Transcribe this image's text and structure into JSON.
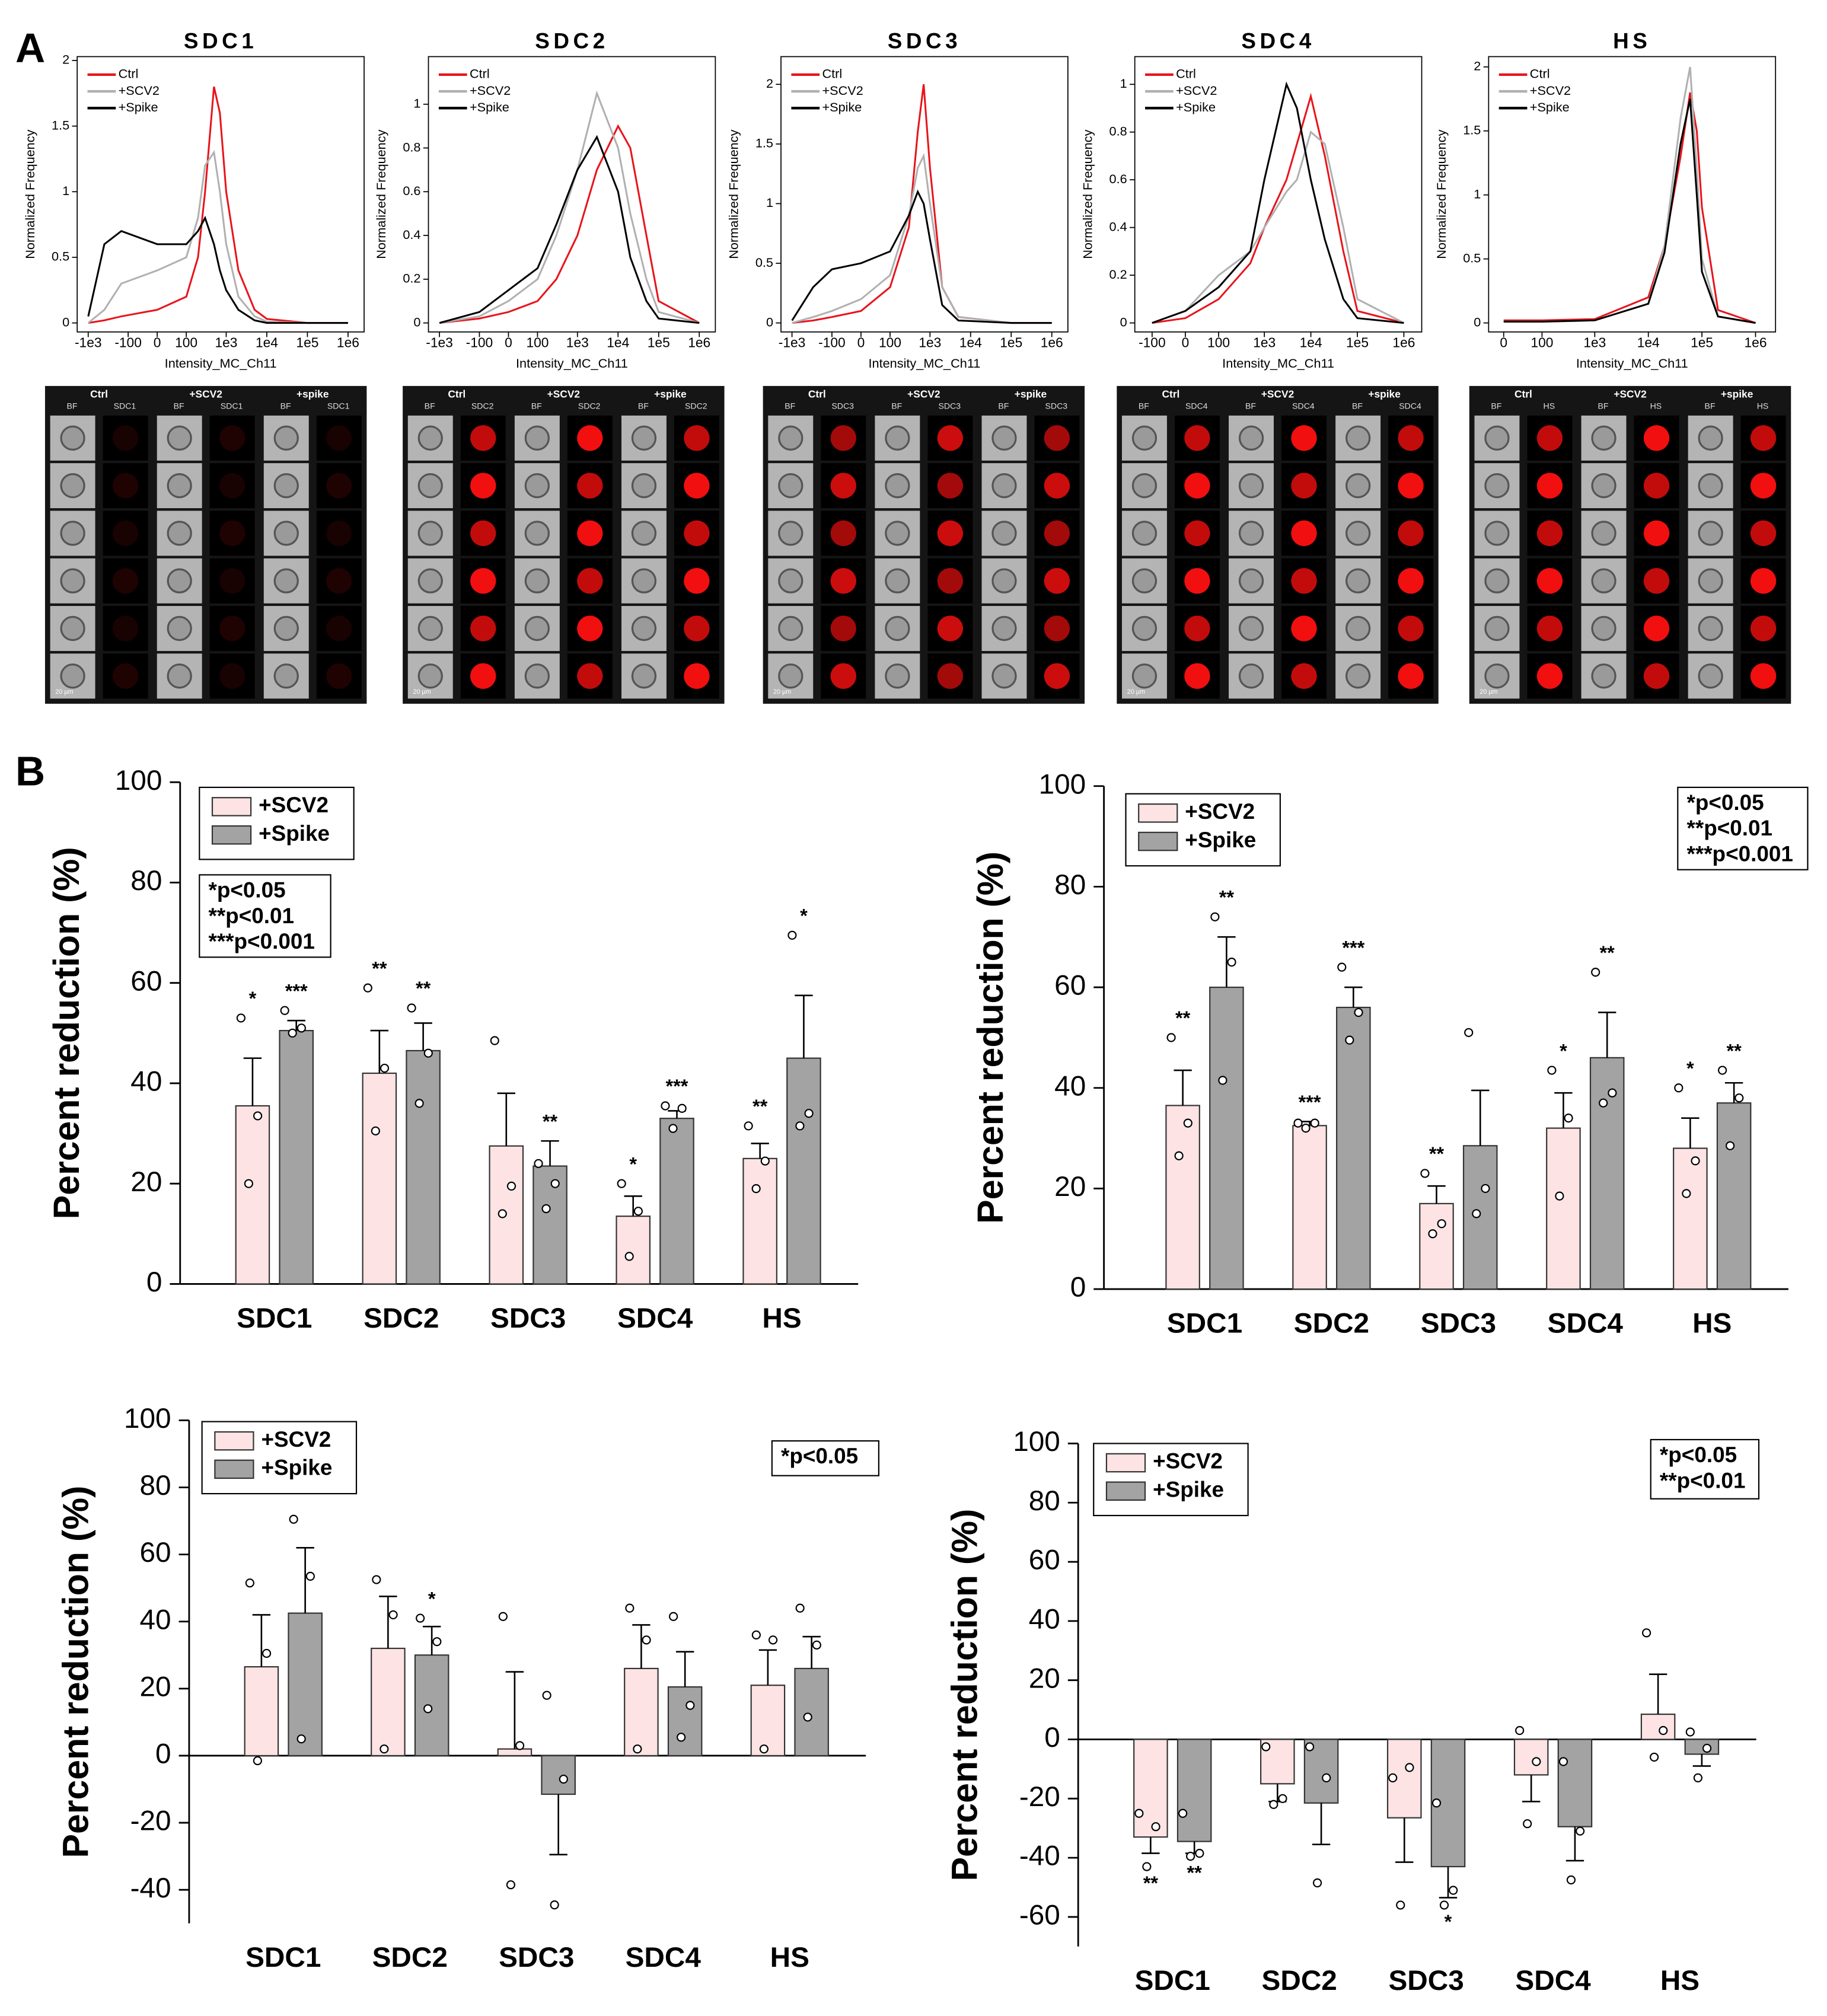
{
  "panel_labels": [
    "A",
    "B"
  ],
  "chart_data": [
    {
      "type": "line",
      "title": "SDC1",
      "xlabel": "Intensity_MC_Ch11",
      "ylabel": "Normalized Frequency",
      "xscale": "logicle",
      "xlim": [
        -1500,
        2000000
      ],
      "ylim": [
        0,
        2
      ],
      "xticks": [
        {
          "value": -1000,
          "label": "-1e3"
        },
        -100,
        0,
        100,
        {
          "value": 1000,
          "label": "1e3"
        },
        {
          "value": 10000,
          "label": "1e4"
        },
        {
          "value": 100000,
          "label": "1e5"
        },
        {
          "value": 1000000,
          "label": "1e6"
        }
      ],
      "yticks": [
        0,
        0.5,
        1,
        1.5,
        2
      ],
      "legend": "upper left",
      "x": [
        -1000,
        -400,
        -150,
        0,
        100,
        200,
        300,
        500,
        700,
        1000,
        2000,
        5000,
        10000,
        100000,
        1000000
      ],
      "series": [
        {
          "name": "Ctrl",
          "color": "#e8141b",
          "values": [
            0,
            0.02,
            0.05,
            0.1,
            0.2,
            0.5,
            1.0,
            1.8,
            1.6,
            1.0,
            0.4,
            0.1,
            0.03,
            0,
            0
          ]
        },
        {
          "name": "+SCV2",
          "color": "#b0b0b0",
          "values": [
            0,
            0.1,
            0.3,
            0.4,
            0.5,
            0.8,
            1.2,
            1.3,
            1.0,
            0.6,
            0.2,
            0.05,
            0.01,
            0,
            0
          ]
        },
        {
          "name": "+Spike",
          "color": "#000000",
          "values": [
            0.05,
            0.6,
            0.7,
            0.6,
            0.6,
            0.7,
            0.8,
            0.6,
            0.4,
            0.25,
            0.1,
            0.02,
            0,
            0,
            0
          ]
        }
      ]
    },
    {
      "type": "line",
      "title": "SDC2",
      "xlabel": "Intensity_MC_Ch11",
      "ylabel": "Normalized Frequency",
      "xscale": "logicle",
      "xlim": [
        -1500,
        2000000
      ],
      "ylim": [
        0,
        1.2
      ],
      "xticks": [
        {
          "value": -1000,
          "label": "-1e3"
        },
        -100,
        0,
        100,
        {
          "value": 1000,
          "label": "1e3"
        },
        {
          "value": 10000,
          "label": "1e4"
        },
        {
          "value": 100000,
          "label": "1e5"
        },
        {
          "value": 1000000,
          "label": "1e6"
        }
      ],
      "yticks": [
        0,
        0.2,
        0.4,
        0.6,
        0.8,
        1
      ],
      "legend": "upper left",
      "x": [
        -1000,
        -100,
        0,
        100,
        300,
        1000,
        3000,
        10000,
        20000,
        50000,
        100000,
        1000000
      ],
      "series": [
        {
          "name": "Ctrl",
          "color": "#e8141b",
          "values": [
            0,
            0.02,
            0.05,
            0.1,
            0.2,
            0.4,
            0.7,
            0.9,
            0.8,
            0.4,
            0.1,
            0
          ]
        },
        {
          "name": "+SCV2",
          "color": "#b0b0b0",
          "values": [
            0,
            0.03,
            0.1,
            0.2,
            0.4,
            0.7,
            1.05,
            0.8,
            0.5,
            0.2,
            0.05,
            0
          ]
        },
        {
          "name": "+Spike",
          "color": "#000000",
          "values": [
            0,
            0.05,
            0.15,
            0.25,
            0.45,
            0.7,
            0.85,
            0.6,
            0.3,
            0.1,
            0.02,
            0
          ]
        }
      ]
    },
    {
      "type": "line",
      "title": "SDC3",
      "xlabel": "Intensity_MC_Ch11",
      "ylabel": "Normalized Frequency",
      "xscale": "logicle",
      "xlim": [
        -1500,
        2000000
      ],
      "ylim": [
        0,
        2.2
      ],
      "xticks": [
        {
          "value": -1000,
          "label": "-1e3"
        },
        -100,
        0,
        100,
        {
          "value": 1000,
          "label": "1e3"
        },
        {
          "value": 10000,
          "label": "1e4"
        },
        {
          "value": 100000,
          "label": "1e5"
        },
        {
          "value": 1000000,
          "label": "1e6"
        }
      ],
      "yticks": [
        0,
        0.5,
        1,
        1.5,
        2
      ],
      "legend": "upper left",
      "x": [
        -1000,
        -300,
        -100,
        0,
        100,
        300,
        500,
        700,
        1000,
        2000,
        5000,
        100000,
        1000000
      ],
      "series": [
        {
          "name": "Ctrl",
          "color": "#e8141b",
          "values": [
            0,
            0.02,
            0.05,
            0.1,
            0.3,
            0.8,
            1.6,
            2.0,
            1.3,
            0.3,
            0.05,
            0,
            0
          ]
        },
        {
          "name": "+SCV2",
          "color": "#b0b0b0",
          "values": [
            0,
            0.05,
            0.1,
            0.2,
            0.4,
            0.9,
            1.3,
            1.4,
            1.0,
            0.3,
            0.05,
            0,
            0
          ]
        },
        {
          "name": "+Spike",
          "color": "#000000",
          "values": [
            0.02,
            0.3,
            0.45,
            0.5,
            0.6,
            0.9,
            1.1,
            1.0,
            0.7,
            0.15,
            0.02,
            0,
            0
          ]
        }
      ]
    },
    {
      "type": "line",
      "title": "SDC4",
      "xlabel": "Intensity_MC_Ch11",
      "ylabel": "Normalized Frequency",
      "xscale": "logicle",
      "xlim": [
        -200,
        2000000
      ],
      "ylim": [
        0,
        1.1
      ],
      "xticks": [
        -100,
        0,
        100,
        {
          "value": 1000,
          "label": "1e3"
        },
        {
          "value": 10000,
          "label": "1e4"
        },
        {
          "value": 100000,
          "label": "1e5"
        },
        {
          "value": 1000000,
          "label": "1e6"
        }
      ],
      "yticks": [
        0,
        0.2,
        0.4,
        0.6,
        0.8,
        1
      ],
      "legend": "upper left",
      "x": [
        -100,
        0,
        100,
        500,
        1000,
        3000,
        5000,
        10000,
        20000,
        50000,
        100000,
        1000000
      ],
      "series": [
        {
          "name": "Ctrl",
          "color": "#e8141b",
          "values": [
            0,
            0.02,
            0.1,
            0.25,
            0.4,
            0.6,
            0.75,
            0.95,
            0.7,
            0.3,
            0.05,
            0
          ]
        },
        {
          "name": "+SCV2",
          "color": "#b0b0b0",
          "values": [
            0,
            0.05,
            0.2,
            0.3,
            0.4,
            0.55,
            0.6,
            0.8,
            0.75,
            0.4,
            0.1,
            0
          ]
        },
        {
          "name": "+Spike",
          "color": "#000000",
          "values": [
            0,
            0.05,
            0.15,
            0.3,
            0.6,
            1.0,
            0.9,
            0.6,
            0.35,
            0.1,
            0.02,
            0
          ]
        }
      ]
    },
    {
      "type": "line",
      "title": "HS",
      "xlabel": "Intensity_MC_Ch11",
      "ylabel": "Normalized Frequency",
      "xscale": "logicle",
      "xlim": [
        -20,
        2000000
      ],
      "ylim": [
        0,
        2.05
      ],
      "xticks": [
        0,
        100,
        {
          "value": 1000,
          "label": "1e3"
        },
        {
          "value": 10000,
          "label": "1e4"
        },
        {
          "value": 100000,
          "label": "1e5"
        },
        {
          "value": 1000000,
          "label": "1e6"
        }
      ],
      "yticks": [
        0,
        0.5,
        1,
        1.5,
        2
      ],
      "legend": "upper left",
      "x": [
        0,
        100,
        1000,
        10000,
        20000,
        40000,
        60000,
        80000,
        100000,
        200000,
        1000000
      ],
      "series": [
        {
          "name": "Ctrl",
          "color": "#e8141b",
          "values": [
            0.02,
            0.02,
            0.03,
            0.2,
            0.6,
            1.3,
            1.8,
            1.5,
            0.9,
            0.1,
            0
          ]
        },
        {
          "name": "+SCV2",
          "color": "#b0b0b0",
          "values": [
            0.01,
            0.01,
            0.02,
            0.15,
            0.6,
            1.6,
            2.0,
            1.2,
            0.5,
            0.05,
            0
          ]
        },
        {
          "name": "+Spike",
          "color": "#000000",
          "values": [
            0.01,
            0.01,
            0.02,
            0.15,
            0.55,
            1.4,
            1.75,
            1.0,
            0.4,
            0.05,
            0
          ]
        }
      ]
    },
    {
      "type": "bar",
      "ylabel": "Percent reduction (%)",
      "categories": [
        "SDC1",
        "SDC2",
        "SDC3",
        "SDC4",
        "HS"
      ],
      "ylim": [
        0,
        100
      ],
      "yticks": [
        0,
        20,
        40,
        60,
        80,
        100
      ],
      "legend": "upper left",
      "annotation": [
        "*p<0.05",
        "**p<0.01",
        "***p<0.001"
      ],
      "series": [
        {
          "name": "+SCV2",
          "color": "#fde3e3",
          "values": [
            35.5,
            42,
            27.5,
            13.5,
            25
          ],
          "errors": [
            9.5,
            8.5,
            10.5,
            4,
            3
          ],
          "points": [
            [
              53,
              33.5,
              20
            ],
            [
              59,
              43,
              30.5
            ],
            [
              48.5,
              19.5,
              14
            ],
            [
              20,
              14.5,
              5.5
            ],
            [
              31.5,
              24.5,
              19
            ]
          ],
          "stars": [
            "*",
            "**",
            null,
            "*",
            "**"
          ]
        },
        {
          "name": "+Spike",
          "color": "#a3a3a3",
          "values": [
            50.5,
            46.5,
            23.5,
            33,
            45
          ],
          "errors": [
            2,
            5.5,
            5,
            1.5,
            12.5
          ],
          "points": [
            [
              54.5,
              51,
              50
            ],
            [
              55,
              46,
              36
            ],
            [
              24,
              20,
              15
            ],
            [
              35.5,
              35,
              31
            ],
            [
              69.5,
              34,
              31.5
            ]
          ],
          "stars": [
            "***",
            "**",
            "**",
            "***",
            "*"
          ]
        }
      ]
    },
    {
      "type": "bar",
      "ylabel": "Percent reduction (%)",
      "categories": [
        "SDC1",
        "SDC2",
        "SDC3",
        "SDC4",
        "HS"
      ],
      "ylim": [
        0,
        100
      ],
      "yticks": [
        0,
        20,
        40,
        60,
        80,
        100
      ],
      "legend": "upper left",
      "annotation": [
        "*p<0.05",
        "**p<0.01",
        "***p<0.001"
      ],
      "series": [
        {
          "name": "+SCV2",
          "color": "#fde3e3",
          "values": [
            36.5,
            32.5,
            17,
            32,
            28
          ],
          "errors": [
            7,
            0.8,
            3.5,
            7,
            6
          ],
          "points": [
            [
              50,
              33,
              26.5
            ],
            [
              33,
              33,
              32
            ],
            [
              23,
              13,
              11
            ],
            [
              43.5,
              34,
              18.5
            ],
            [
              40,
              25.5,
              19
            ]
          ],
          "stars": [
            "**",
            "***",
            "**",
            "*",
            "*"
          ]
        },
        {
          "name": "+Spike",
          "color": "#a3a3a3",
          "values": [
            60,
            56,
            28.5,
            46,
            37
          ],
          "errors": [
            10,
            4,
            11,
            9,
            4
          ],
          "points": [
            [
              74,
              65,
              41.5
            ],
            [
              64,
              55,
              49.5
            ],
            [
              51,
              20,
              15
            ],
            [
              63,
              39,
              37
            ],
            [
              43.5,
              38,
              28.5
            ]
          ],
          "stars": [
            "**",
            "***",
            null,
            "**",
            "**"
          ]
        }
      ]
    },
    {
      "type": "bar",
      "ylabel": "Percent reduction (%)",
      "categories": [
        "SDC1",
        "SDC2",
        "SDC3",
        "SDC4",
        "HS"
      ],
      "ylim": [
        -50,
        100
      ],
      "yticks": [
        -40,
        -20,
        0,
        20,
        40,
        60,
        80,
        100
      ],
      "legend": "upper left",
      "annotation": [
        "*p<0.05"
      ],
      "series": [
        {
          "name": "+SCV2",
          "color": "#fde3e3",
          "values": [
            26.5,
            32,
            2,
            26,
            21
          ],
          "errors": [
            15.5,
            15.5,
            23,
            13,
            10.5
          ],
          "points": [
            [
              51.5,
              30.5,
              -1.5
            ],
            [
              52.5,
              42,
              2
            ],
            [
              41.5,
              3,
              -38.5
            ],
            [
              44,
              34.5,
              2
            ],
            [
              36,
              34.5,
              2
            ]
          ],
          "stars": [
            null,
            null,
            null,
            null,
            null
          ]
        },
        {
          "name": "+Spike",
          "color": "#a3a3a3",
          "values": [
            42.5,
            30,
            -11.5,
            20.5,
            26
          ],
          "errors": [
            19.5,
            8.5,
            18,
            10.5,
            9.5
          ],
          "points": [
            [
              70.5,
              53.5,
              5
            ],
            [
              41,
              34,
              14
            ],
            [
              18,
              -7,
              -44.5
            ],
            [
              41.5,
              15,
              5.5
            ],
            [
              44,
              33,
              11.5
            ]
          ],
          "stars": [
            null,
            "*",
            null,
            null,
            null
          ]
        }
      ]
    },
    {
      "type": "bar",
      "ylabel": "Percent reduction (%)",
      "categories": [
        "SDC1",
        "SDC2",
        "SDC3",
        "SDC4",
        "HS"
      ],
      "ylim": [
        -70,
        100
      ],
      "yticks": [
        -60,
        -40,
        -20,
        0,
        20,
        40,
        60,
        80,
        100
      ],
      "legend": "upper left",
      "annotation": [
        "*p<0.05",
        "**p<0.01"
      ],
      "series": [
        {
          "name": "+SCV2",
          "color": "#fde3e3",
          "values": [
            -33,
            -15,
            -26.5,
            -12,
            8.5
          ],
          "errors": [
            5.5,
            6,
            15,
            9,
            13.5
          ],
          "points": [
            [
              -25,
              -29.5,
              -43
            ],
            [
              -2.5,
              -20,
              -22
            ],
            [
              -13,
              -9.5,
              -56
            ],
            [
              3,
              -7.5,
              -28.5
            ],
            [
              36,
              3,
              -6
            ]
          ],
          "stars": [
            "**",
            null,
            null,
            null,
            null
          ]
        },
        {
          "name": "+Spike",
          "color": "#a3a3a3",
          "values": [
            -34.5,
            -21.5,
            -43,
            -29.5,
            -5
          ],
          "errors": [
            4,
            14,
            10.5,
            11.5,
            4
          ],
          "points": [
            [
              -25,
              -38.5,
              -39.5
            ],
            [
              -2.5,
              -13,
              -48.5
            ],
            [
              -21.5,
              -51,
              -56
            ],
            [
              -7.5,
              -31,
              -47.5
            ],
            [
              2.5,
              -3,
              -13
            ]
          ],
          "stars": [
            "**",
            null,
            "*",
            null,
            null
          ]
        }
      ]
    }
  ],
  "image_panels": [
    {
      "groups": [
        "Ctrl",
        "+SCV2",
        "+spike"
      ],
      "channels": [
        "BF",
        "SDC1"
      ],
      "scale_bar": "20 µm"
    },
    {
      "groups": [
        "Ctrl",
        "+SCV2",
        "+spike"
      ],
      "channels": [
        "BF",
        "SDC2"
      ],
      "scale_bar": "20 µm"
    },
    {
      "groups": [
        "Ctrl",
        "+SCV2",
        "+spike"
      ],
      "channels": [
        "BF",
        "SDC3"
      ],
      "scale_bar": "20 µm"
    },
    {
      "groups": [
        "Ctrl",
        "+SCV2",
        "+spike"
      ],
      "channels": [
        "BF",
        "SDC4"
      ],
      "scale_bar": "20 µm"
    },
    {
      "groups": [
        "Ctrl",
        "+SCV2",
        "+spike"
      ],
      "channels": [
        "BF",
        "HS"
      ],
      "scale_bar": "20 µm"
    }
  ]
}
